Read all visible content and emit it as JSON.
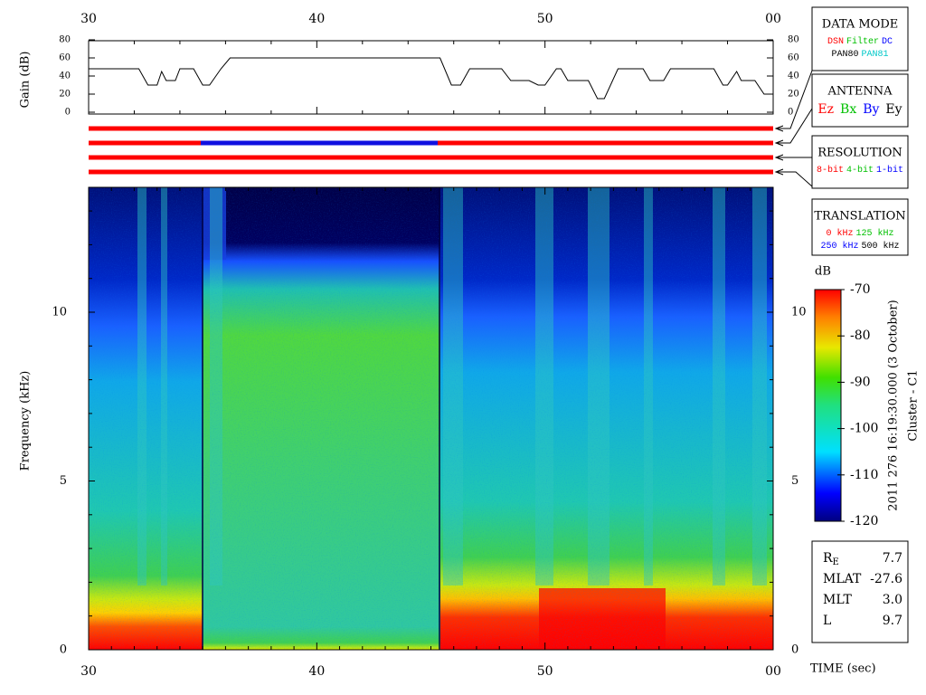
{
  "chart_data": [
    {
      "type": "line",
      "ylabel": "Gain (dB)",
      "x": [
        30,
        32.2,
        32.6,
        33.0,
        33.2,
        33.4,
        33.8,
        34.0,
        34.6,
        35.0,
        35.3,
        35.8,
        36.2,
        45.4,
        45.9,
        46.3,
        46.7,
        48.1,
        48.5,
        49.3,
        49.7,
        50.0,
        50.5,
        50.7,
        51.0,
        51.9,
        52.3,
        52.6,
        53.2,
        54.3,
        54.6,
        55.2,
        55.5,
        57.4,
        57.8,
        58.0,
        58.4,
        58.6,
        59.2,
        59.6,
        60
      ],
      "values": [
        48,
        48,
        30,
        30,
        45,
        35,
        35,
        48,
        48,
        30,
        30,
        48,
        60,
        60,
        30,
        30,
        48,
        48,
        35,
        35,
        30,
        30,
        48,
        48,
        35,
        35,
        15,
        15,
        48,
        48,
        35,
        35,
        48,
        48,
        30,
        30,
        45,
        35,
        35,
        20,
        20
      ],
      "color": "#000000",
      "xlim": [
        30,
        60
      ],
      "xticks": [
        30,
        40,
        50,
        {
          "value": 60,
          "label": "00"
        }
      ],
      "xminorticks": [
        32,
        34,
        36,
        38,
        42,
        44,
        46,
        48,
        52,
        54,
        56,
        58
      ],
      "ylim": [
        0,
        80
      ],
      "yticks": [
        0,
        20,
        40,
        60,
        80
      ]
    },
    {
      "type": "heatmap",
      "xlabel": "TIME (sec)",
      "ylabel": "Frequency (kHz)",
      "xlim": [
        30,
        60
      ],
      "xticks": [
        30,
        40,
        50,
        {
          "value": 60,
          "label": "00"
        }
      ],
      "xminorticks": [
        31,
        32,
        33,
        34,
        35,
        36,
        37,
        38,
        39,
        41,
        42,
        43,
        44,
        45,
        46,
        47,
        48,
        49,
        51,
        52,
        53,
        54,
        55,
        56,
        57,
        58,
        59
      ],
      "ylim": [
        0,
        13.7
      ],
      "yticks": [
        0,
        5,
        10
      ],
      "yminorticks": [
        1,
        2,
        3,
        4,
        6,
        7,
        8,
        9,
        11,
        12,
        13
      ],
      "colorbar": {
        "label": "dB",
        "lim": [
          -120,
          -70
        ],
        "ticks": [
          -120,
          -110,
          -100,
          -90,
          -80,
          -70
        ]
      },
      "caption": [
        "2011 276 16:19:30.000 (3 October)",
        "Cluster - C1"
      ]
    }
  ],
  "legend_boxes": [
    {
      "title": "DATA MODE",
      "lines": [
        [
          {
            "text": "DSN",
            "color": "#ff0000"
          },
          {
            "text": "Filter",
            "color": "#00c000"
          },
          {
            "text": "DC",
            "color": "#0000ff"
          }
        ],
        [
          {
            "text": "PAN80",
            "color": "#000000"
          },
          {
            "text": "PAN81",
            "color": "#00c8c8"
          }
        ]
      ]
    },
    {
      "title": "ANTENNA",
      "lines": [
        [
          {
            "text": "Ez",
            "color": "#ff0000"
          },
          {
            "text": "Bx",
            "color": "#00c000"
          },
          {
            "text": "By",
            "color": "#0000ff"
          },
          {
            "text": "Ey",
            "color": "#000000"
          }
        ]
      ]
    },
    {
      "title": "RESOLUTION",
      "lines": [
        [
          {
            "text": "8-bit",
            "color": "#ff0000"
          },
          {
            "text": "4-bit",
            "color": "#00c000"
          },
          {
            "text": "1-bit",
            "color": "#0000ff"
          }
        ]
      ]
    },
    {
      "title": "TRANSLATION",
      "lines": [
        [
          {
            "text": "0 kHz",
            "color": "#ff0000"
          },
          {
            "text": "125 kHz",
            "color": "#00c000"
          }
        ],
        [
          {
            "text": "250 kHz",
            "color": "#0000ff"
          },
          {
            "text": "500 kHz",
            "color": "#000000"
          }
        ]
      ]
    }
  ],
  "info": [
    {
      "label": "R",
      "sub": "E",
      "value": "7.7"
    },
    {
      "label": "MLAT",
      "value": "-27.6"
    },
    {
      "label": "MLT",
      "value": "3.0"
    },
    {
      "label": "L",
      "value": "9.7"
    }
  ]
}
